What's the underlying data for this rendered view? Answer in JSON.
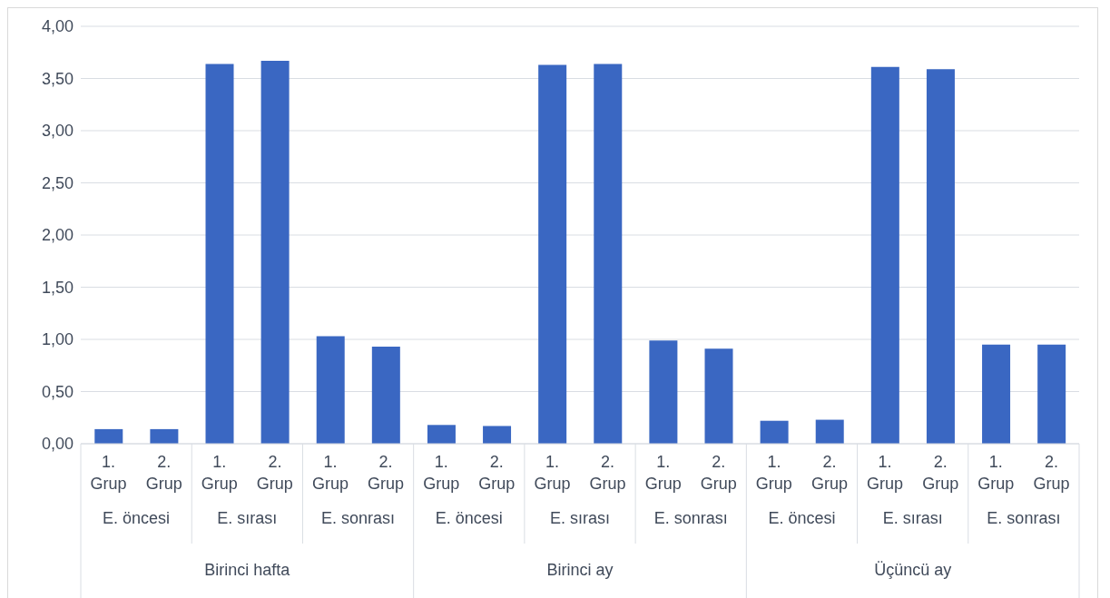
{
  "chart_data": {
    "type": "bar",
    "categories": [
      "1. Grup",
      "2. Grup",
      "1. Grup",
      "2. Grup",
      "1. Grup",
      "2. Grup",
      "1. Grup",
      "2. Grup",
      "1. Grup",
      "2. Grup",
      "1. Grup",
      "2. Grup",
      "1. Grup",
      "2. Grup",
      "1. Grup",
      "2. Grup",
      "1. Grup",
      "2. Grup"
    ],
    "values": [
      0.14,
      0.14,
      3.64,
      3.67,
      1.03,
      0.93,
      0.18,
      0.17,
      3.63,
      3.64,
      0.99,
      0.91,
      0.22,
      0.23,
      3.61,
      3.59,
      0.95,
      0.95
    ],
    "color": "#3a67c2",
    "ylim": [
      0,
      4
    ],
    "yticks": [
      {
        "value": 0,
        "label": "0,00"
      },
      {
        "value": 0.5,
        "label": "0,50"
      },
      {
        "value": 1,
        "label": "1,00"
      },
      {
        "value": 1.5,
        "label": "1,50"
      },
      {
        "value": 2,
        "label": "2,00"
      },
      {
        "value": 2.5,
        "label": "2,50"
      },
      {
        "value": 3,
        "label": "3,00"
      },
      {
        "value": 3.5,
        "label": "3,50"
      },
      {
        "value": 4,
        "label": "4,00"
      }
    ],
    "grid": "y",
    "annotations": [
      "E. öncesi",
      "E. sırası",
      "E. sonrası",
      "E. öncesi",
      "E. sırası",
      "E. sonrası",
      "E. öncesi",
      "E. sırası",
      "E. sonrası",
      "Birinci hafta",
      "Birinci ay",
      "Üçüncü ay"
    ]
  }
}
